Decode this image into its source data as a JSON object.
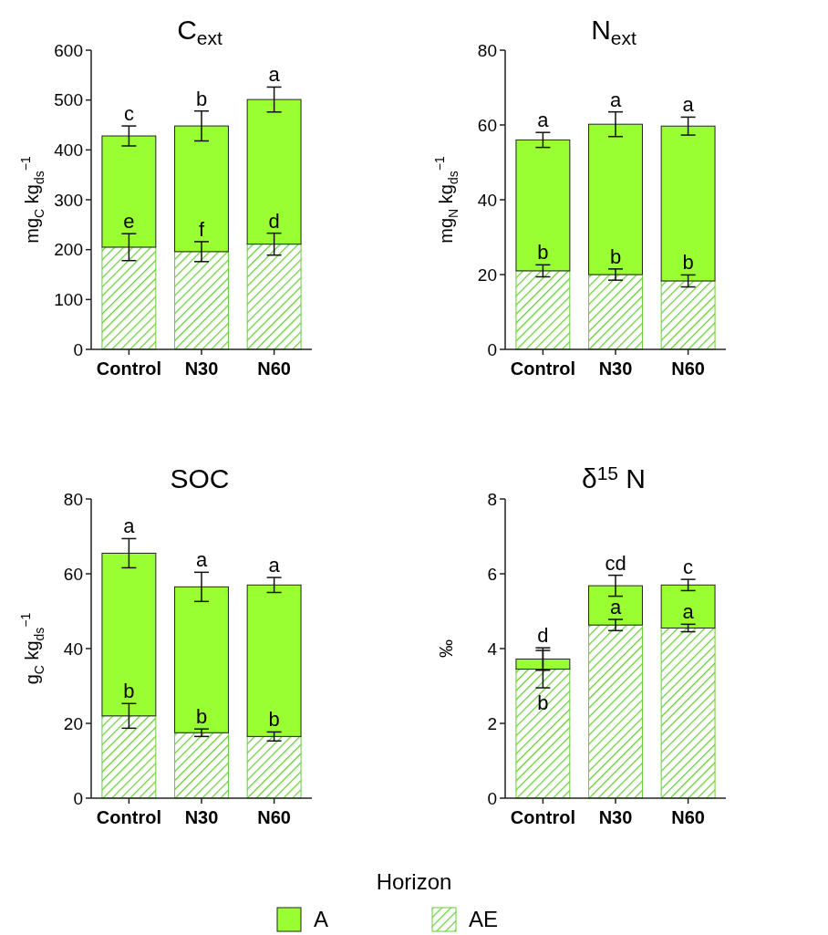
{
  "chart_data": [
    {
      "type": "bar",
      "title": "C$_{ext}$",
      "ylabel": "mg$_{C}$ kg$_{ds}$$^{−1}$",
      "categories": [
        "Control",
        "N30",
        "N60"
      ],
      "ylim": [
        0,
        600
      ],
      "yticks": [
        0,
        100,
        200,
        300,
        400,
        500,
        600
      ],
      "stacked": true,
      "legend": "bottom",
      "legend_title": "Horizon",
      "series": [
        {
          "name": "AE",
          "color": "#66cc33",
          "values": [
            205,
            196,
            211
          ],
          "errors": [
            27,
            20,
            22
          ]
        },
        {
          "name": "A",
          "color": "#99ff33",
          "values": [
            223,
            252,
            290
          ],
          "errors": [
            20,
            30,
            25
          ]
        }
      ],
      "annotations": [
        {
          "text": "c",
          "x": "Control",
          "y": 428
        },
        {
          "text": "b",
          "x": "N30",
          "y": 448
        },
        {
          "text": "a",
          "x": "N60",
          "y": 501
        },
        {
          "text": "e",
          "x": "Control",
          "y": 205
        },
        {
          "text": "f",
          "x": "N30",
          "y": 196
        },
        {
          "text": "d",
          "x": "N60",
          "y": 211
        }
      ]
    },
    {
      "type": "bar",
      "title": "N$_{ext}$",
      "ylabel": "mg$_{N}$ kg$_{ds}$$^{−1}$",
      "categories": [
        "Control",
        "N30",
        "N60"
      ],
      "ylim": [
        0,
        80
      ],
      "yticks": [
        0,
        20,
        40,
        60,
        80
      ],
      "stacked": true,
      "series": [
        {
          "color": "#66cc33",
          "values": [
            21,
            20,
            18.3
          ],
          "errors": [
            1.6,
            1.5,
            1.6
          ]
        },
        {
          "color": "#99ff33",
          "values": [
            35,
            40.2,
            41.4
          ],
          "errors": [
            2,
            3.3,
            2.4
          ]
        }
      ],
      "annotations": [
        {
          "text": "a",
          "x": "Control",
          "y": 56
        },
        {
          "text": "a",
          "x": "N30",
          "y": 60.2
        },
        {
          "text": "a",
          "x": "N60",
          "y": 59.7
        },
        {
          "text": "b",
          "x": "Control",
          "y": 21
        },
        {
          "text": "b",
          "x": "N30",
          "y": 20
        },
        {
          "text": "b",
          "x": "N60",
          "y": 18.3
        }
      ]
    },
    {
      "type": "bar",
      "title": "SOC",
      "ylabel": "g$_{C}$ kg$_{ds}$$^{−1}$",
      "categories": [
        "Control",
        "N30",
        "N60"
      ],
      "ylim": [
        0,
        80
      ],
      "yticks": [
        0,
        20,
        40,
        60,
        80
      ],
      "stacked": true,
      "series": [
        {
          "color": "#66cc33",
          "values": [
            22,
            17.5,
            16.5
          ],
          "errors": [
            3.3,
            1,
            1.2
          ]
        },
        {
          "color": "#99ff33",
          "values": [
            43.5,
            39,
            40.5
          ],
          "errors": [
            3.9,
            3.9,
            2
          ]
        }
      ],
      "annotations": [
        {
          "text": "a",
          "x": "Control",
          "y": 65.5
        },
        {
          "text": "a",
          "x": "N30",
          "y": 56.5
        },
        {
          "text": "a",
          "x": "N60",
          "y": 57
        },
        {
          "text": "b",
          "x": "Control",
          "y": 22
        },
        {
          "text": "b",
          "x": "N30",
          "y": 17.5
        },
        {
          "text": "b",
          "x": "N60",
          "y": 16.5
        }
      ]
    },
    {
      "type": "bar",
      "title": "δ$^{15}$ N",
      "ylabel": "‰",
      "categories": [
        "Control",
        "N30",
        "N60"
      ],
      "ylim": [
        0,
        8
      ],
      "yticks": [
        0,
        2,
        4,
        6,
        8
      ],
      "stacked": true,
      "series": [
        {
          "color": "#66cc33",
          "values": [
            3.45,
            4.63,
            4.55
          ],
          "errors": [
            0.5,
            0.15,
            0.1
          ]
        },
        {
          "color": "#99ff33",
          "values": [
            0.27,
            1.05,
            1.15
          ],
          "errors": [
            0.3,
            0.28,
            0.15
          ]
        }
      ],
      "annotations": [
        {
          "text": "d",
          "x": "Control",
          "y": 3.72
        },
        {
          "text": "b",
          "x": "Control",
          "y": 2.95
        },
        {
          "text": "cd",
          "x": "N30",
          "y": 5.68
        },
        {
          "text": "a",
          "x": "N30",
          "y": 4.63
        },
        {
          "text": "c",
          "x": "N60",
          "y": 5.7
        },
        {
          "text": "a",
          "x": "N60",
          "y": 4.55
        }
      ]
    }
  ]
}
